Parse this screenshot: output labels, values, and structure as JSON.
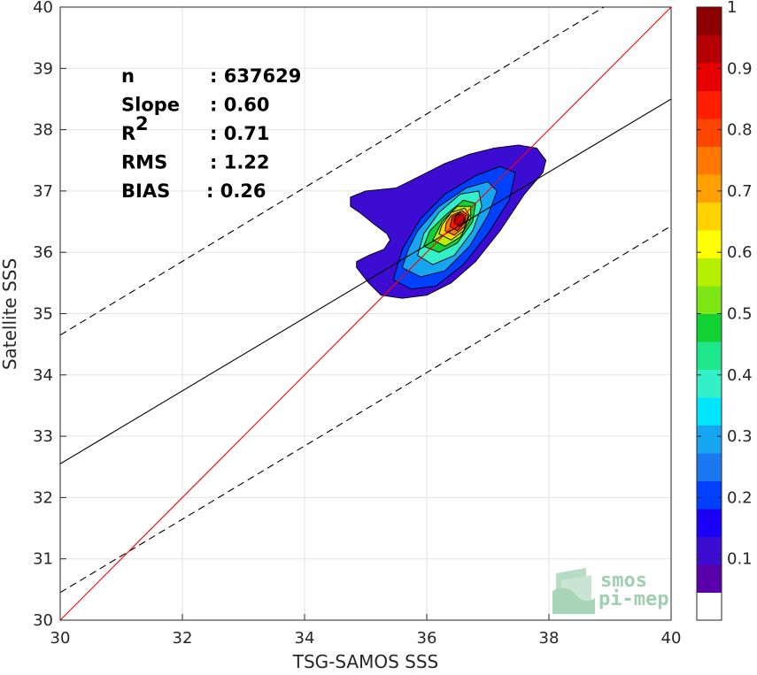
{
  "chart_data": {
    "type": "contour",
    "xlabel": "TSG-SAMOS SSS",
    "ylabel": "Satellite SSS",
    "xlim": [
      30,
      40
    ],
    "ylim": [
      30,
      40
    ],
    "xticks": [
      "30",
      "32",
      "34",
      "36",
      "38",
      "40"
    ],
    "yticks": [
      "30",
      "31",
      "32",
      "33",
      "34",
      "35",
      "36",
      "37",
      "38",
      "39",
      "40"
    ],
    "grid": true,
    "stats": [
      {
        "label": "n",
        "value": ": 637629"
      },
      {
        "label": "Slope",
        "value": ": 0.60"
      },
      {
        "label": "R",
        "sup": "2",
        "value": ": 0.71"
      },
      {
        "label": "RMS",
        "value": ": 1.22"
      },
      {
        "label": "BIAS",
        "value": ": 0.26"
      }
    ],
    "lines": {
      "identity": {
        "points": [
          [
            30,
            30
          ],
          [
            40,
            40
          ]
        ],
        "color": "#ff0000"
      },
      "regression": {
        "points": [
          [
            30,
            32.55
          ],
          [
            40,
            38.5
          ]
        ],
        "color": "#000000"
      },
      "upper_bound": {
        "points": [
          [
            30,
            34.65
          ],
          [
            38.9,
            40
          ]
        ],
        "color": "#000000",
        "dash": "dashed"
      },
      "lower_bound": {
        "points": [
          [
            30,
            30.45
          ],
          [
            40,
            36.43
          ]
        ],
        "color": "#000000",
        "dash": "dashed"
      }
    },
    "density_center": [
      36.55,
      36.55
    ],
    "colorbar": {
      "ticks": [
        "0.1",
        "0.2",
        "0.3",
        "0.4",
        "0.5",
        "0.6",
        "0.7",
        "0.8",
        "0.9",
        "1"
      ],
      "range": [
        0,
        1
      ],
      "colors": [
        "#ffffff",
        "#5a00aa",
        "#3c0cd2",
        "#1a00f5",
        "#0040ff",
        "#1a78f0",
        "#16a5f0",
        "#00e6ff",
        "#33f0c8",
        "#1ee68a",
        "#10d232",
        "#7de614",
        "#b4f000",
        "#ffff00",
        "#ffd200",
        "#ffa000",
        "#ff7800",
        "#ff4600",
        "#ff1e00",
        "#e60000",
        "#b40000",
        "#8c0000"
      ]
    },
    "contours": [
      {
        "level": 0.05,
        "color": "#3c0cd2",
        "polygon": [
          [
            34.85,
            35.85
          ],
          [
            34.85,
            35.75
          ],
          [
            35.05,
            35.5
          ],
          [
            35.25,
            35.3
          ],
          [
            35.6,
            35.25
          ],
          [
            36.0,
            35.3
          ],
          [
            36.4,
            35.5
          ],
          [
            36.8,
            35.85
          ],
          [
            37.2,
            36.35
          ],
          [
            37.6,
            36.95
          ],
          [
            37.9,
            37.3
          ],
          [
            37.95,
            37.5
          ],
          [
            37.8,
            37.7
          ],
          [
            37.5,
            37.75
          ],
          [
            37.1,
            37.7
          ],
          [
            36.7,
            37.6
          ],
          [
            36.3,
            37.45
          ],
          [
            35.9,
            37.25
          ],
          [
            35.6,
            37.1
          ],
          [
            35.5,
            37.05
          ],
          [
            35.0,
            37.0
          ],
          [
            34.75,
            36.9
          ],
          [
            34.75,
            36.75
          ],
          [
            34.9,
            36.65
          ],
          [
            35.15,
            36.45
          ],
          [
            35.35,
            36.3
          ],
          [
            35.4,
            36.2
          ],
          [
            35.3,
            36.05
          ],
          [
            35.05,
            35.95
          ]
        ]
      },
      {
        "level": 0.3,
        "color": "#0040ff",
        "polygon": [
          [
            35.45,
            35.55
          ],
          [
            35.75,
            35.4
          ],
          [
            36.15,
            35.45
          ],
          [
            36.6,
            35.8
          ],
          [
            37.0,
            36.3
          ],
          [
            37.35,
            36.85
          ],
          [
            37.45,
            37.3
          ],
          [
            37.2,
            37.4
          ],
          [
            36.8,
            37.25
          ],
          [
            36.3,
            36.95
          ],
          [
            35.9,
            36.55
          ],
          [
            35.6,
            36.05
          ]
        ]
      },
      {
        "level": 0.35,
        "color": "#16a5f0",
        "polygon": [
          [
            35.6,
            35.75
          ],
          [
            35.9,
            35.6
          ],
          [
            36.3,
            35.7
          ],
          [
            36.7,
            36.1
          ],
          [
            37.0,
            36.6
          ],
          [
            37.15,
            37.0
          ],
          [
            37.0,
            37.15
          ],
          [
            36.65,
            37.05
          ],
          [
            36.2,
            36.75
          ],
          [
            35.85,
            36.35
          ],
          [
            35.7,
            36.05
          ]
        ]
      },
      {
        "level": 0.4,
        "color": "#33f0c8",
        "polygon": [
          [
            35.85,
            35.95
          ],
          [
            36.1,
            35.8
          ],
          [
            36.45,
            35.95
          ],
          [
            36.75,
            36.35
          ],
          [
            36.9,
            36.75
          ],
          [
            36.85,
            37.0
          ],
          [
            36.55,
            36.95
          ],
          [
            36.2,
            36.65
          ],
          [
            35.95,
            36.3
          ]
        ]
      },
      {
        "level": 0.5,
        "color": "#10d232",
        "polygon": [
          [
            35.95,
            36.1
          ],
          [
            36.2,
            36.0
          ],
          [
            36.5,
            36.15
          ],
          [
            36.75,
            36.5
          ],
          [
            36.8,
            36.8
          ],
          [
            36.6,
            36.85
          ],
          [
            36.3,
            36.6
          ],
          [
            36.05,
            36.35
          ]
        ]
      },
      {
        "level": 0.6,
        "color": "#b4f000",
        "polygon": [
          [
            36.1,
            36.2
          ],
          [
            36.3,
            36.1
          ],
          [
            36.55,
            36.25
          ],
          [
            36.72,
            36.55
          ],
          [
            36.72,
            36.75
          ],
          [
            36.5,
            36.75
          ],
          [
            36.25,
            36.5
          ]
        ]
      },
      {
        "level": 0.7,
        "color": "#ffd200",
        "polygon": [
          [
            36.2,
            36.3
          ],
          [
            36.4,
            36.2
          ],
          [
            36.6,
            36.35
          ],
          [
            36.7,
            36.6
          ],
          [
            36.62,
            36.72
          ],
          [
            36.4,
            36.65
          ],
          [
            36.25,
            36.45
          ]
        ]
      },
      {
        "level": 0.8,
        "color": "#ff7800",
        "polygon": [
          [
            36.3,
            36.35
          ],
          [
            36.45,
            36.28
          ],
          [
            36.62,
            36.42
          ],
          [
            36.68,
            36.6
          ],
          [
            36.58,
            36.68
          ],
          [
            36.4,
            36.6
          ],
          [
            36.32,
            36.48
          ]
        ]
      },
      {
        "level": 0.9,
        "color": "#ff1e00",
        "polygon": [
          [
            36.38,
            36.42
          ],
          [
            36.5,
            36.35
          ],
          [
            36.62,
            36.48
          ],
          [
            36.64,
            36.6
          ],
          [
            36.55,
            36.65
          ],
          [
            36.42,
            36.58
          ]
        ]
      },
      {
        "level": 0.97,
        "color": "#b40000",
        "polygon": [
          [
            36.45,
            36.47
          ],
          [
            36.55,
            36.43
          ],
          [
            36.62,
            36.52
          ],
          [
            36.6,
            36.6
          ],
          [
            36.5,
            36.62
          ],
          [
            36.45,
            36.55
          ]
        ]
      }
    ]
  },
  "logo": {
    "line1": "smos",
    "line2": "pi-mep"
  }
}
